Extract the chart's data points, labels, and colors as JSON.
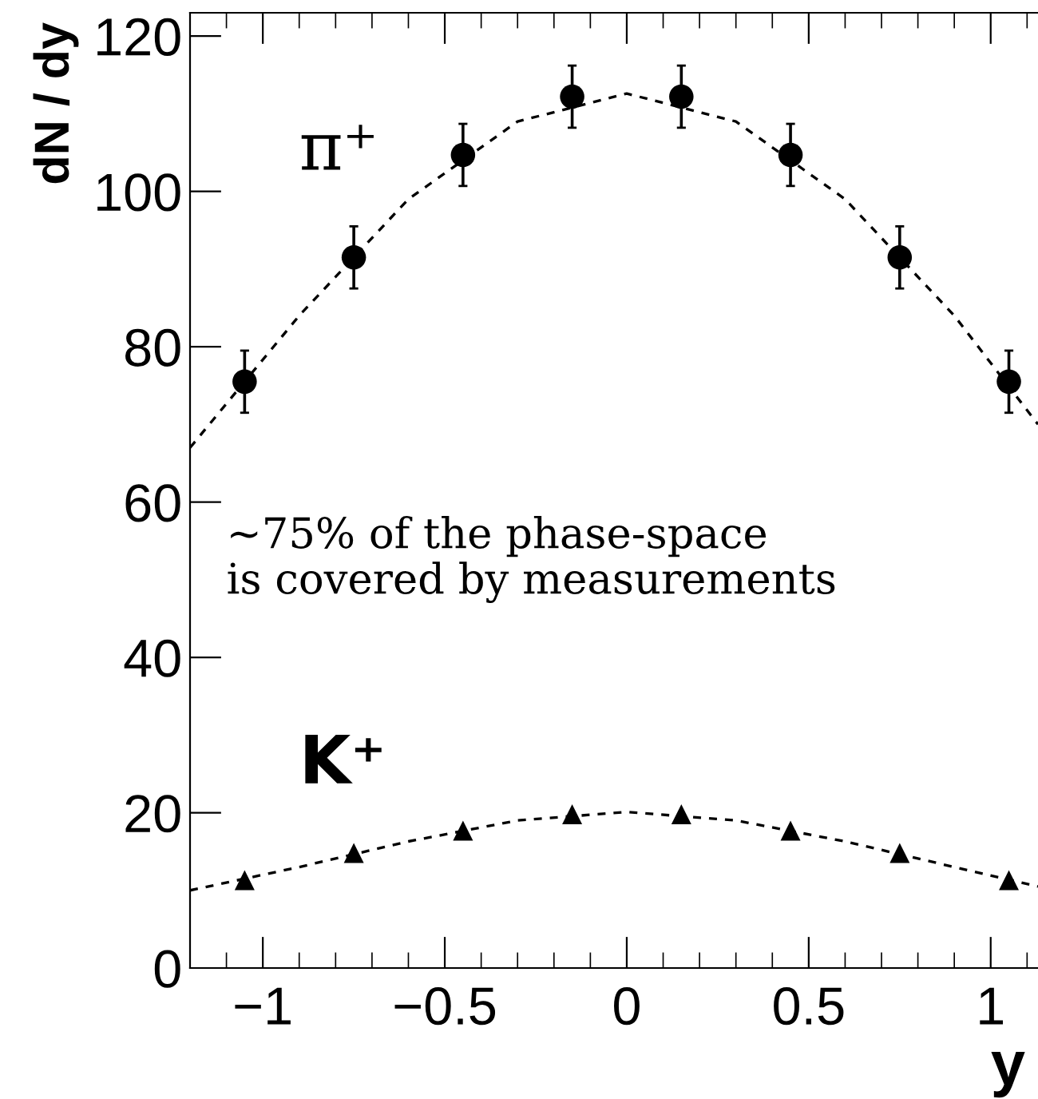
{
  "chart_data": {
    "type": "scatter",
    "xlabel": "y",
    "ylabel": "dN / dy",
    "xlim": [
      -1.2,
      1.13
    ],
    "ylim": [
      0,
      123
    ],
    "xticks": [
      {
        "value": -1,
        "label": "−1"
      },
      {
        "value": -0.5,
        "label": "−0.5"
      },
      0,
      0.5,
      1
    ],
    "yticks": [
      0,
      20,
      40,
      60,
      80,
      100,
      120
    ],
    "grid": false,
    "legend": "top left",
    "annotations": [
      "~75% of the phase-space\nis covered by measurements"
    ],
    "series": [
      {
        "name": "π⁺",
        "color": "#000000",
        "marker": "circle",
        "x": [
          -1.05,
          -0.75,
          -0.45,
          -0.15,
          0.15,
          0.45,
          0.75,
          1.05
        ],
        "values": [
          75.5,
          91.5,
          104.7,
          112.2,
          112.2,
          104.7,
          91.5,
          75.5
        ],
        "errors": [
          4,
          4,
          4,
          4,
          4,
          4,
          4,
          4
        ]
      },
      {
        "name": "K⁺",
        "color": "#000000",
        "marker": "triangle",
        "x": [
          -1.05,
          -0.75,
          -0.45,
          -0.15,
          0.15,
          0.45,
          0.75,
          1.05
        ],
        "values": [
          11.3,
          14.8,
          17.7,
          19.8,
          19.8,
          17.7,
          14.8,
          11.3
        ]
      },
      {
        "type": "line",
        "color": "#000000",
        "line_style": "dashed",
        "marker": "none",
        "x": [
          -1.2,
          -0.9,
          -0.6,
          -0.3,
          0,
          0.3,
          0.6,
          0.9,
          1.13
        ],
        "values": [
          67,
          84,
          99,
          109,
          112.6,
          109,
          99,
          84,
          70
        ]
      },
      {
        "type": "line",
        "color": "#000000",
        "line_style": "dashed",
        "marker": "none",
        "x": [
          -1.2,
          -0.9,
          -0.6,
          -0.3,
          0,
          0.3,
          0.6,
          0.9,
          1.13
        ],
        "values": [
          10,
          13,
          16.3,
          19,
          20.1,
          19,
          16.3,
          13,
          10.5
        ]
      }
    ]
  }
}
